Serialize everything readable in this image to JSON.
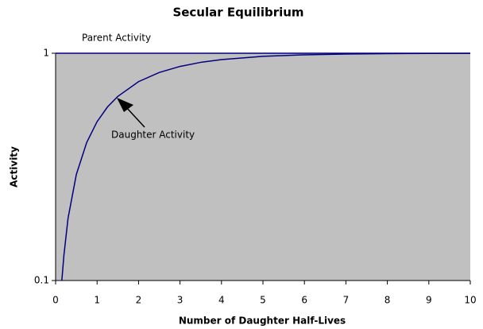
{
  "chart_data": {
    "type": "line",
    "title": "Secular Equilibrium",
    "xlabel": "Number of Daughter Half-Lives",
    "ylabel": "Activity",
    "xlim": [
      0,
      10
    ],
    "xticks": [
      0,
      1,
      2,
      3,
      4,
      5,
      6,
      7,
      8,
      9,
      10
    ],
    "ylim": [
      0.1,
      1
    ],
    "yticks": [
      0.1,
      1
    ],
    "yscale": "log",
    "background": "#c0c0c0",
    "series": [
      {
        "name": "Parent Activity",
        "color": "#000080",
        "x": [
          0,
          10
        ],
        "values": [
          1,
          1
        ]
      },
      {
        "name": "Daughter Activity",
        "color": "#000080",
        "x": [
          0.15,
          0.2,
          0.3,
          0.5,
          0.75,
          1,
          1.25,
          1.5,
          2,
          2.5,
          3,
          3.5,
          4,
          5,
          6,
          7,
          8,
          9,
          10
        ],
        "values": [
          0.1,
          0.129,
          0.188,
          0.293,
          0.405,
          0.5,
          0.58,
          0.646,
          0.75,
          0.823,
          0.875,
          0.912,
          0.938,
          0.969,
          0.984,
          0.992,
          0.996,
          0.998,
          0.999
        ]
      }
    ]
  }
}
